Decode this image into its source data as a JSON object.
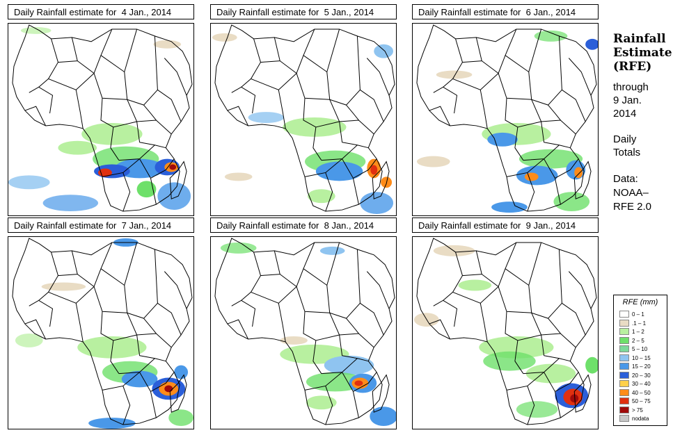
{
  "panels": [
    {
      "title": "Daily Rainfall estimate for  4 Jan., 2014"
    },
    {
      "title": "Daily Rainfall estimate for  5 Jan., 2014"
    },
    {
      "title": "Daily Rainfall estimate for  6 Jan., 2014"
    },
    {
      "title": "Daily Rainfall estimate for  7 Jan., 2014"
    },
    {
      "title": "Daily Rainfall estimate for  8 Jan., 2014"
    },
    {
      "title": "Daily Rainfall estimate for  9 Jan., 2014"
    }
  ],
  "side": {
    "title_line1": "Rainfall",
    "title_line2": "Estimate",
    "title_line3": "(RFE)",
    "through": "through",
    "date_line1": "9 Jan.",
    "date_line2": "2014",
    "daily": "Daily",
    "totals": "Totals",
    "data_label": "Data:",
    "source_line1": "NOAA–",
    "source_line2": "RFE 2.0"
  },
  "legend": {
    "title": "RFE (mm)",
    "items": [
      {
        "label": "0 – 1",
        "color": "#ffffff"
      },
      {
        "label": ".1 – 1",
        "color": "#e9dcc4"
      },
      {
        "label": "1 – 2",
        "color": "#b8f0a0"
      },
      {
        "label": "2 – 5",
        "color": "#6ee06a"
      },
      {
        "label": "5 – 10",
        "color": "#7dd99a"
      },
      {
        "label": "10 – 15",
        "color": "#8fc4f0"
      },
      {
        "label": "15 – 20",
        "color": "#4a98e8"
      },
      {
        "label": "20 – 30",
        "color": "#2b5fd9"
      },
      {
        "label": "30 – 40",
        "color": "#ffd04a"
      },
      {
        "label": "40 – 50",
        "color": "#ff8c1a"
      },
      {
        "label": "50 – 75",
        "color": "#e03010"
      },
      {
        "label": "> 75",
        "color": "#a00a0a"
      },
      {
        "label": "nodata",
        "color": "#c8c8c8"
      }
    ]
  }
}
